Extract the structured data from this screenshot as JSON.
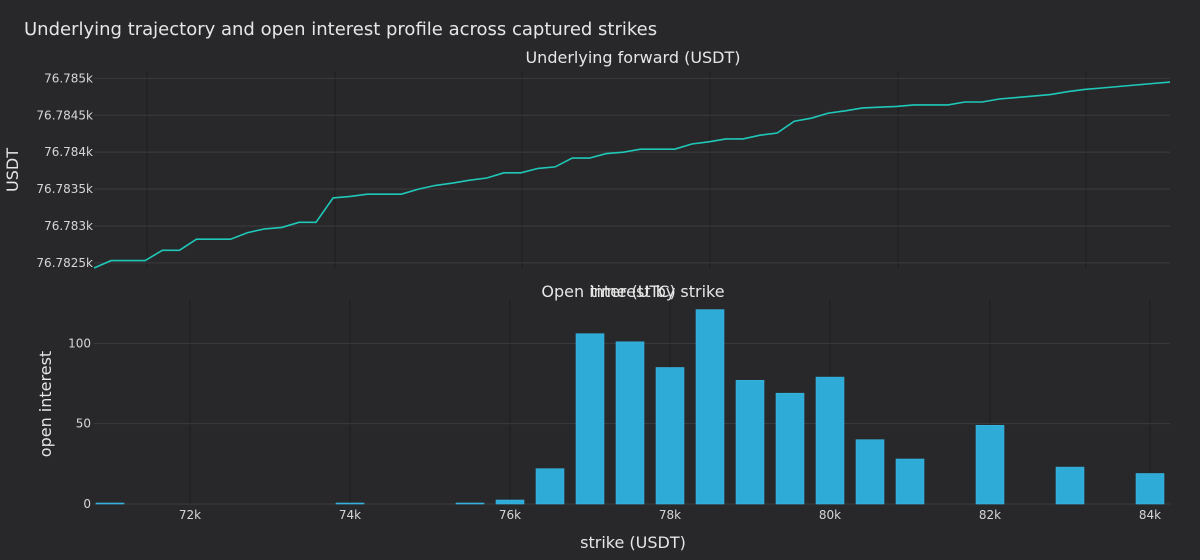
{
  "title": "Underlying trajectory and open interest profile across captured strikes",
  "colors": {
    "background": "#28282b",
    "line": "#1fc8b8",
    "bar": "#2eabd6"
  },
  "chart_data": [
    {
      "type": "line",
      "title": "Underlying forward (USDT)",
      "xlabel": "time (UTC)",
      "ylabel": "USDT",
      "ylim": [
        76782.43,
        76785.1
      ],
      "yticks": [
        76782.5,
        76783,
        76783.5,
        76784,
        76784.5,
        76785
      ],
      "ytick_labels": [
        "76.7825k",
        "76.783k",
        "76.7835k",
        "76.784k",
        "76.7845k",
        "76.785k"
      ],
      "grid": true,
      "series": [
        {
          "values": [
            76782.43,
            76782.53,
            76782.53,
            76782.53,
            76782.67,
            76782.67,
            76782.82,
            76782.82,
            76782.82,
            76782.91,
            76782.96,
            76782.98,
            76783.05,
            76783.05,
            76783.38,
            76783.4,
            76783.43,
            76783.43,
            76783.43,
            76783.5,
            76783.55,
            76783.58,
            76783.62,
            76783.65,
            76783.72,
            76783.72,
            76783.78,
            76783.8,
            76783.92,
            76783.92,
            76783.98,
            76784.0,
            76784.04,
            76784.04,
            76784.04,
            76784.11,
            76784.14,
            76784.18,
            76784.18,
            76784.23,
            76784.26,
            76784.42,
            76784.46,
            76784.53,
            76784.56,
            76784.6,
            76784.61,
            76784.62,
            76784.64,
            76784.64,
            76784.64,
            76784.68,
            76784.68,
            76784.72,
            76784.74,
            76784.76,
            76784.78,
            76784.82,
            76784.85,
            76784.87,
            76784.89,
            76784.91,
            76784.93,
            76784.95
          ]
        }
      ]
    },
    {
      "type": "bar",
      "title": "Open interest by strike",
      "xlabel": "strike (USDT)",
      "ylabel": "open interest",
      "xlim": [
        70800,
        84250
      ],
      "ylim": [
        0,
        127
      ],
      "xticks": [
        72000,
        74000,
        76000,
        78000,
        80000,
        82000,
        84000
      ],
      "xtick_labels": [
        "72k",
        "74k",
        "76k",
        "78k",
        "80k",
        "82k",
        "84k"
      ],
      "yticks": [
        0,
        50,
        100
      ],
      "ytick_labels": [
        "0",
        "50",
        "100"
      ],
      "grid": true,
      "x": [
        71000,
        74000,
        75500,
        76000,
        76500,
        77000,
        77500,
        78000,
        78500,
        79000,
        79500,
        80000,
        80500,
        81000,
        82000,
        83000,
        84000
      ],
      "values": [
        0.3,
        0.3,
        0.5,
        2.5,
        22,
        106,
        101,
        85,
        121,
        77,
        69,
        79,
        40,
        28,
        49,
        23,
        19
      ]
    }
  ]
}
